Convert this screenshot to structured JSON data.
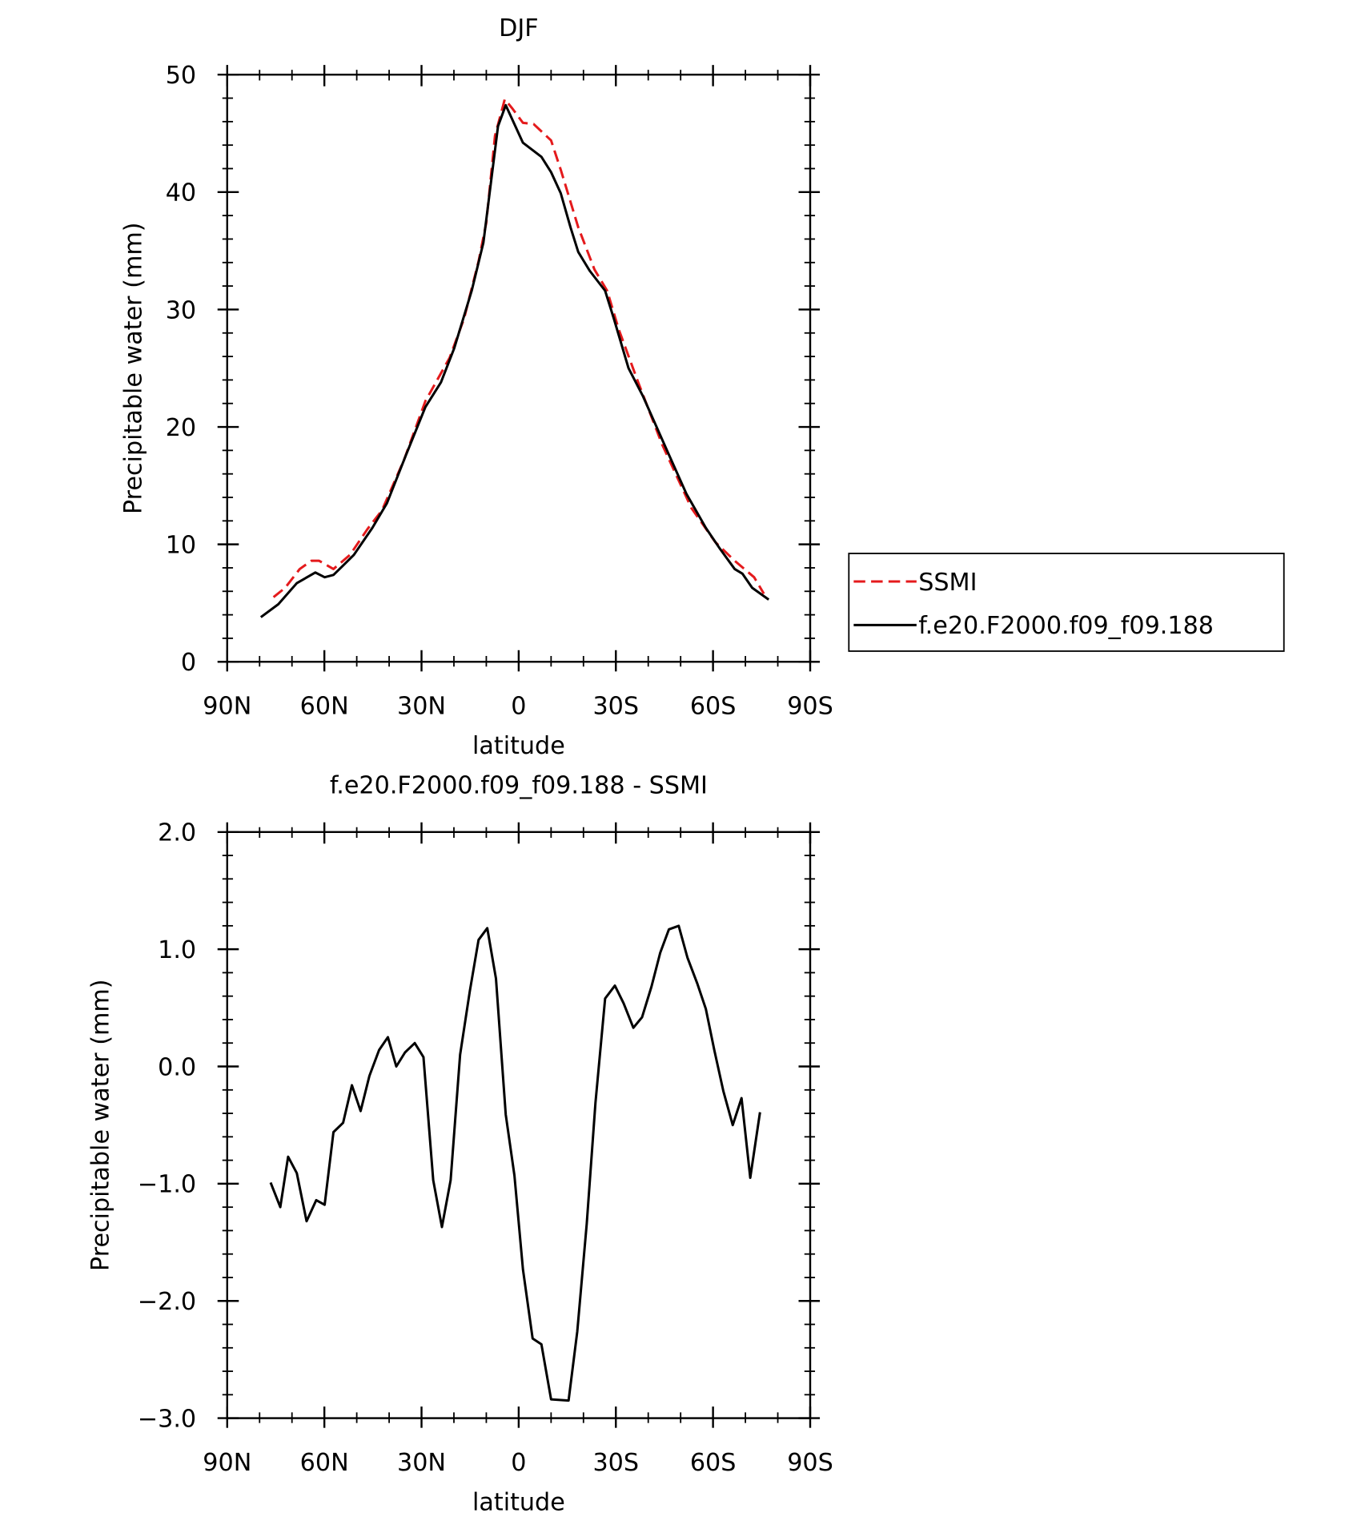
{
  "chart_data": [
    {
      "type": "line",
      "title": "DJF",
      "x_label": "latitude",
      "y_label": "Precipitable water (mm)",
      "xlim": [
        90,
        -90
      ],
      "xticks": [
        {
          "value": 90,
          "label": "90N"
        },
        {
          "value": 60,
          "label": "60N"
        },
        {
          "value": 30,
          "label": "30N"
        },
        0,
        {
          "value": -30,
          "label": "30S"
        },
        {
          "value": -60,
          "label": "60S"
        },
        {
          "value": -90,
          "label": "90S"
        }
      ],
      "ylim": [
        0,
        50
      ],
      "yticks": [
        0,
        10,
        20,
        30,
        40,
        50
      ],
      "legend": "right",
      "series": [
        {
          "name": "SSMI",
          "color": "#e41a1c",
          "line_style": "dashed",
          "x": [
            75.7,
            72.1,
            67.6,
            64.0,
            61.6,
            57.2,
            52.1,
            46.7,
            42.2,
            35.4,
            28.8,
            21.3,
            16.9,
            12.4,
            10.0,
            7.3,
            4.3,
            1.9,
            -1.3,
            -4.6,
            -10.0,
            -13.0,
            -18.4,
            -23.4,
            -27.3,
            -30.9,
            -36.9,
            -44.3,
            -53.3,
            -60.7,
            -66.7,
            -72.7,
            -75.7
          ],
          "values": [
            5.5,
            6.3,
            7.9,
            8.6,
            8.6,
            7.9,
            9.1,
            11.3,
            12.9,
            17.2,
            22.2,
            25.9,
            29.2,
            34.1,
            37.4,
            44.8,
            47.9,
            47.1,
            45.9,
            45.8,
            44.4,
            41.9,
            37.0,
            33.4,
            31.6,
            28.3,
            23.8,
            18.5,
            13.1,
            10.2,
            8.6,
            7.2,
            5.8
          ]
        },
        {
          "name": "f.e20.F2000.f09_f09.188",
          "color": "#000000",
          "line_style": "solid",
          "x": [
            79.6,
            74.2,
            68.5,
            62.8,
            59.9,
            57.2,
            54.2,
            50.9,
            45.2,
            40.7,
            34.8,
            28.8,
            24.0,
            19.9,
            14.5,
            10.9,
            6.4,
            4.0,
            -1.3,
            -7.0,
            -10.0,
            -13.0,
            -16.0,
            -18.4,
            -21.9,
            -26.7,
            -29.4,
            -33.9,
            -38.4,
            -45.8,
            -51.8,
            -57.8,
            -62.2,
            -66.7,
            -69.1,
            -72.1,
            -77.2
          ],
          "values": [
            3.8,
            4.9,
            6.7,
            7.6,
            7.2,
            7.4,
            8.2,
            9.1,
            11.4,
            13.5,
            17.6,
            21.7,
            23.8,
            26.7,
            31.6,
            35.7,
            45.6,
            47.4,
            44.2,
            43.0,
            41.7,
            39.9,
            37.0,
            34.9,
            33.3,
            31.6,
            29.2,
            25.0,
            22.6,
            18.0,
            14.3,
            11.4,
            9.6,
            7.9,
            7.5,
            6.3,
            5.3
          ]
        }
      ]
    },
    {
      "type": "line",
      "title": "f.e20.F2000.f09_f09.188 - SSMI",
      "x_label": "latitude",
      "y_label": "Precipitable water (mm)",
      "xlim": [
        90,
        -90
      ],
      "xticks": [
        {
          "value": 90,
          "label": "90N"
        },
        {
          "value": 60,
          "label": "60N"
        },
        {
          "value": 30,
          "label": "30N"
        },
        0,
        {
          "value": -30,
          "label": "30S"
        },
        {
          "value": -60,
          "label": "60S"
        },
        {
          "value": -90,
          "label": "90S"
        }
      ],
      "ylim": [
        -3,
        2
      ],
      "yticks": [
        {
          "value": 2,
          "label": "2.0"
        },
        {
          "value": 1,
          "label": "1.0"
        },
        {
          "value": 0,
          "label": "0.0"
        },
        {
          "value": -1,
          "label": "−1.0"
        },
        {
          "value": -2,
          "label": "−2.0"
        },
        {
          "value": -3,
          "label": "−3.0"
        }
      ],
      "series": [
        {
          "color": "#000000",
          "line_style": "solid",
          "x": [
            76.6,
            73.6,
            71.2,
            68.5,
            65.5,
            62.5,
            59.9,
            57.2,
            54.2,
            51.5,
            48.8,
            46.1,
            43.1,
            40.4,
            37.8,
            35.1,
            32.1,
            29.4,
            26.4,
            23.7,
            21.0,
            18.1,
            15.1,
            12.4,
            9.7,
            7.0,
            4.0,
            1.3,
            -1.3,
            -4.3,
            -7.0,
            -10.0,
            -15.4,
            -18.1,
            -21.0,
            -23.7,
            -26.7,
            -29.7,
            -32.4,
            -35.4,
            -38.1,
            -41.0,
            -43.7,
            -46.4,
            -49.4,
            -52.1,
            -55.1,
            -57.8,
            -60.4,
            -63.2,
            -66.1,
            -68.8,
            -71.5,
            -74.5
          ],
          "values": [
            -0.99,
            -1.2,
            -0.77,
            -0.91,
            -1.32,
            -1.14,
            -1.18,
            -0.56,
            -0.48,
            -0.16,
            -0.38,
            -0.08,
            0.14,
            0.25,
            0.0,
            0.12,
            0.2,
            0.08,
            -0.97,
            -1.37,
            -0.97,
            0.1,
            0.64,
            1.08,
            1.18,
            0.75,
            -0.41,
            -0.93,
            -1.73,
            -2.32,
            -2.37,
            -2.84,
            -2.85,
            -2.26,
            -1.34,
            -0.31,
            0.58,
            0.69,
            0.54,
            0.33,
            0.42,
            0.68,
            0.97,
            1.17,
            1.2,
            0.93,
            0.71,
            0.49,
            0.14,
            -0.21,
            -0.5,
            -0.27,
            -0.95,
            -0.39
          ]
        }
      ]
    }
  ]
}
